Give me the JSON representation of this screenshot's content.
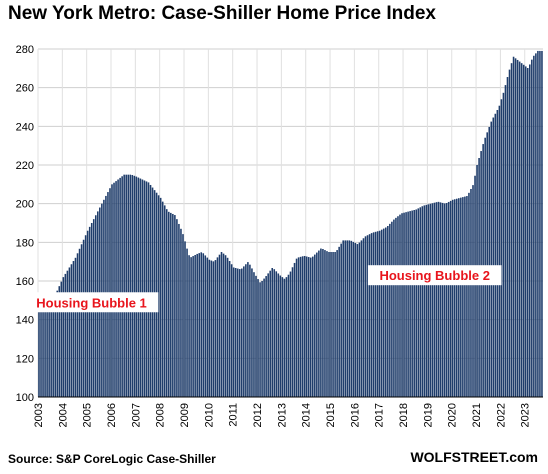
{
  "chart_data": {
    "type": "bar",
    "title": "New York Metro: Case-Shiller Home Price Index",
    "source": "Source: S&P CoreLogic Case-Shiller",
    "brand": "WOLFSTREET.com",
    "ylim": [
      100,
      280
    ],
    "y_ticks": [
      "100",
      "120",
      "140",
      "160",
      "180",
      "200",
      "220",
      "240",
      "260",
      "280"
    ],
    "x_ticks": [
      "2003",
      "2004",
      "2005",
      "2006",
      "2007",
      "2008",
      "2009",
      "2010",
      "2011",
      "2012",
      "2013",
      "2014",
      "2015",
      "2016",
      "2017",
      "2018",
      "2019",
      "2020",
      "2021",
      "2022",
      "2023"
    ],
    "grid": true,
    "bar_color": "#1f3d6b",
    "annotation_color": "#e8141c",
    "annotations": [
      {
        "label": "Housing Bubble 1",
        "near_year": 2005.2,
        "near_value": 149
      },
      {
        "label": "Housing Bubble 2",
        "near_year": 2019.3,
        "near_value": 163
      }
    ],
    "anchors": [
      [
        2003.0,
        145
      ],
      [
        2003.5,
        150
      ],
      [
        2003.75,
        155
      ],
      [
        2004.0,
        162
      ],
      [
        2004.5,
        172
      ],
      [
        2005.0,
        186
      ],
      [
        2005.5,
        198
      ],
      [
        2006.0,
        210
      ],
      [
        2006.5,
        215
      ],
      [
        2006.8,
        215
      ],
      [
        2007.0,
        214
      ],
      [
        2007.5,
        211
      ],
      [
        2008.0,
        203
      ],
      [
        2008.3,
        196
      ],
      [
        2008.6,
        194
      ],
      [
        2008.9,
        185
      ],
      [
        2009.1,
        176
      ],
      [
        2009.2,
        172
      ],
      [
        2009.5,
        174
      ],
      [
        2009.7,
        175
      ],
      [
        2010.0,
        171
      ],
      [
        2010.2,
        170
      ],
      [
        2010.5,
        175
      ],
      [
        2010.7,
        173
      ],
      [
        2011.0,
        167
      ],
      [
        2011.3,
        166
      ],
      [
        2011.6,
        170
      ],
      [
        2011.9,
        163
      ],
      [
        2012.1,
        159
      ],
      [
        2012.3,
        162
      ],
      [
        2012.6,
        167
      ],
      [
        2012.9,
        163
      ],
      [
        2013.1,
        161
      ],
      [
        2013.3,
        164
      ],
      [
        2013.6,
        172
      ],
      [
        2013.9,
        173
      ],
      [
        2014.2,
        172
      ],
      [
        2014.6,
        177
      ],
      [
        2014.9,
        175
      ],
      [
        2015.2,
        175
      ],
      [
        2015.5,
        181
      ],
      [
        2015.8,
        181
      ],
      [
        2016.1,
        179
      ],
      [
        2016.4,
        183
      ],
      [
        2016.7,
        185
      ],
      [
        2017.0,
        186
      ],
      [
        2017.3,
        188
      ],
      [
        2017.6,
        192
      ],
      [
        2017.9,
        195
      ],
      [
        2018.2,
        196
      ],
      [
        2018.5,
        197
      ],
      [
        2018.8,
        199
      ],
      [
        2019.1,
        200
      ],
      [
        2019.4,
        201
      ],
      [
        2019.7,
        200
      ],
      [
        2020.0,
        202
      ],
      [
        2020.3,
        203
      ],
      [
        2020.6,
        204
      ],
      [
        2020.85,
        210
      ],
      [
        2021.0,
        220
      ],
      [
        2021.3,
        233
      ],
      [
        2021.6,
        243
      ],
      [
        2021.9,
        250
      ],
      [
        2022.1,
        258
      ],
      [
        2022.3,
        268
      ],
      [
        2022.5,
        276
      ],
      [
        2022.7,
        274
      ],
      [
        2022.9,
        272
      ],
      [
        2023.1,
        270
      ],
      [
        2023.3,
        276
      ],
      [
        2023.5,
        279
      ]
    ]
  }
}
